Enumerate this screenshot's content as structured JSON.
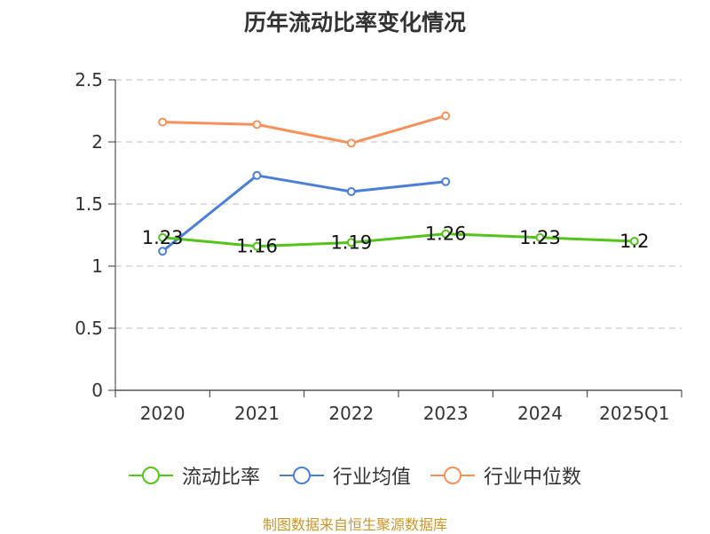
{
  "chart_data": {
    "type": "line",
    "title": "历年流动比率变化情况",
    "categories": [
      "2020",
      "2021",
      "2022",
      "2023",
      "2024",
      "2025Q1"
    ],
    "ylim": [
      0,
      2.5
    ],
    "yticks": [
      0,
      0.5,
      1,
      1.5,
      2,
      2.5
    ],
    "ytick_labels": [
      "0",
      "0.5",
      "1",
      "1.5",
      "2",
      "2.5"
    ],
    "grid": true,
    "legend_position": "bottom",
    "series": [
      {
        "name": "流动比率",
        "color": "#52c41a",
        "values": [
          1.23,
          1.16,
          1.19,
          1.26,
          1.23,
          1.2
        ],
        "labels": [
          "1.23",
          "1.16",
          "1.19",
          "1.26",
          "1.23",
          "1.2"
        ]
      },
      {
        "name": "行业均值",
        "color": "#4a7fd9",
        "values": [
          1.12,
          1.73,
          1.6,
          1.68,
          null,
          null
        ]
      },
      {
        "name": "行业中位数",
        "color": "#f7905a",
        "values": [
          2.16,
          2.14,
          1.99,
          2.21,
          null,
          null
        ]
      }
    ]
  },
  "source": {
    "text": "制图数据来自恒生聚源数据库",
    "color": "#c8962a"
  }
}
